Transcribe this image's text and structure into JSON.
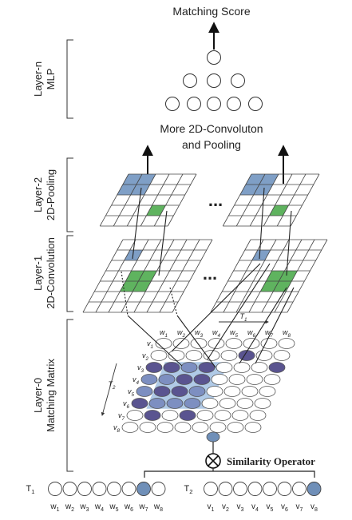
{
  "title": "Matching Score",
  "more_conv_label": [
    "More 2D-Convoluton",
    "and Pooling"
  ],
  "layers": {
    "layer_n": [
      "Layer-n",
      "MLP"
    ],
    "layer_2": [
      "Layer-2",
      "2D-Pooling"
    ],
    "layer_1": [
      "Layer-1",
      "2D-Convolution"
    ],
    "layer_0": [
      "Layer-0",
      "Matching Matrix"
    ]
  },
  "ellipsis": "...",
  "similarity_operator": "Similarity Operator",
  "matrix": {
    "t1_label": "T1",
    "t2_label": "T2",
    "col_labels": [
      "w1",
      "w2",
      "w3",
      "w4",
      "w5",
      "w6",
      "w7",
      "w8"
    ],
    "row_labels": [
      "v1",
      "v2",
      "v3",
      "v4",
      "v5",
      "v6",
      "v7",
      "v8"
    ]
  },
  "sequences": {
    "t1": {
      "label": "T1",
      "words": [
        "w1",
        "w2",
        "w3",
        "w4",
        "w5",
        "w6",
        "w7",
        "w8"
      ]
    },
    "t2": {
      "label": "T2",
      "words": [
        "v1",
        "v2",
        "v3",
        "v4",
        "v5",
        "v6",
        "v7",
        "v8"
      ]
    }
  },
  "colors": {
    "line": "#333333",
    "blue_cell": "#7f9fc6",
    "green_cell": "#5fb35f",
    "dark_node": "#5a5490",
    "blue_node": "#6f8fb8",
    "highlight_region": "#a7c4e4"
  }
}
